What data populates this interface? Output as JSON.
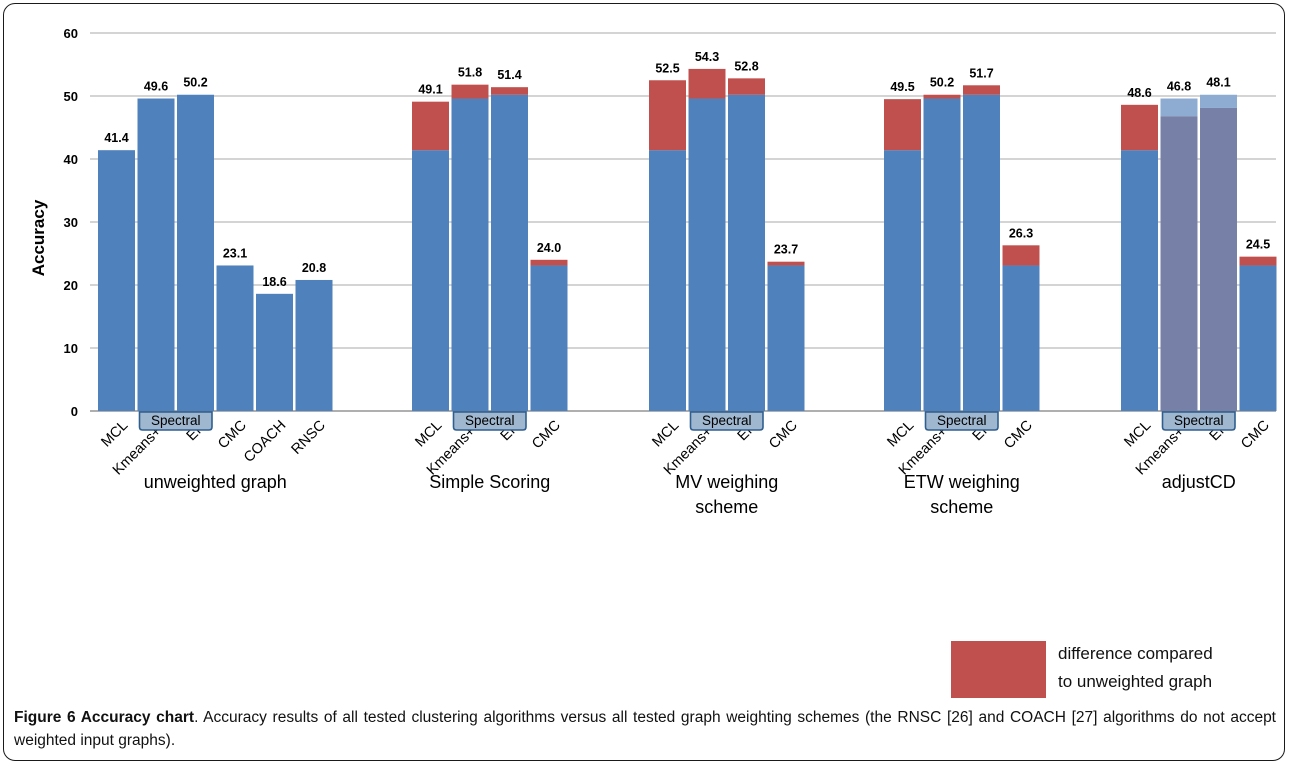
{
  "chart_data": {
    "type": "bar",
    "ylabel": "Accuracy",
    "ylim": [
      0,
      60
    ],
    "yticks": [
      0,
      10,
      20,
      30,
      40,
      50,
      60
    ],
    "grid": true,
    "bracket_label": "Spectral",
    "colors": {
      "base": "#4f81bd",
      "difference": "#c0504d",
      "spectral_base": "#7781a8",
      "spectral_difference": "#8eacd2"
    },
    "groups": [
      {
        "label": "unweighted graph",
        "bars": [
          {
            "category": "MCL",
            "base": 41.4,
            "total": 41.4,
            "label": "41.4"
          },
          {
            "category": "Kmeans++",
            "base": 49.6,
            "total": 49.6,
            "label": "49.6"
          },
          {
            "category": "EM",
            "base": 50.2,
            "total": 50.2,
            "label": "50.2"
          },
          {
            "category": "CMC",
            "base": 23.1,
            "total": 23.1,
            "label": "23.1"
          },
          {
            "category": "COACH",
            "base": 18.6,
            "total": 18.6,
            "label": "18.6"
          },
          {
            "category": "RNSC",
            "base": 20.8,
            "total": 20.8,
            "label": "20.8"
          }
        ]
      },
      {
        "label": "Simple Scoring",
        "bars": [
          {
            "category": "MCL",
            "base": 41.4,
            "total": 49.1,
            "label": "49.1"
          },
          {
            "category": "Kmeans++",
            "base": 49.6,
            "total": 51.8,
            "label": "51.8"
          },
          {
            "category": "EM",
            "base": 50.2,
            "total": 51.4,
            "label": "51.4"
          },
          {
            "category": "CMC",
            "base": 23.1,
            "total": 24.0,
            "label": "24.0"
          }
        ]
      },
      {
        "label": "MV weighing scheme",
        "bars": [
          {
            "category": "MCL",
            "base": 41.4,
            "total": 52.5,
            "label": "52.5"
          },
          {
            "category": "Kmeans++",
            "base": 49.6,
            "total": 54.3,
            "label": "54.3"
          },
          {
            "category": "EM",
            "base": 50.2,
            "total": 52.8,
            "label": "52.8"
          },
          {
            "category": "CMC",
            "base": 23.1,
            "total": 23.7,
            "label": "23.7"
          }
        ]
      },
      {
        "label": "ETW weighing scheme",
        "bars": [
          {
            "category": "MCL",
            "base": 41.4,
            "total": 49.5,
            "label": "49.5"
          },
          {
            "category": "Kmeans++",
            "base": 49.6,
            "total": 50.2,
            "label": "50.2"
          },
          {
            "category": "EM",
            "base": 50.2,
            "total": 51.7,
            "label": "51.7"
          },
          {
            "category": "CMC",
            "base": 23.1,
            "total": 26.3,
            "label": "26.3"
          }
        ]
      },
      {
        "label": "adjustCD",
        "bars": [
          {
            "category": "MCL",
            "base": 41.4,
            "total": 48.6,
            "label": "48.6"
          },
          {
            "category": "Kmeans++",
            "base": 46.8,
            "total": 49.6,
            "label": "46.8",
            "style": "spectral"
          },
          {
            "category": "EM",
            "base": 48.1,
            "total": 50.2,
            "label": "48.1",
            "style": "spectral"
          },
          {
            "category": "CMC",
            "base": 23.1,
            "total": 24.5,
            "label": "24.5"
          }
        ]
      }
    ],
    "legend": {
      "position": "bottom-right",
      "entries": [
        {
          "label_lines": [
            "difference compared",
            "to unweighted graph"
          ],
          "color": "#c0504d"
        }
      ]
    }
  },
  "caption": {
    "figure_label": "Figure 6 Accuracy chart",
    "text": ". Accuracy results of all tested clustering algorithms versus all tested graph weighting schemes (the RNSC [26] and COACH [27] algorithms do not accept weighted input graphs)."
  }
}
